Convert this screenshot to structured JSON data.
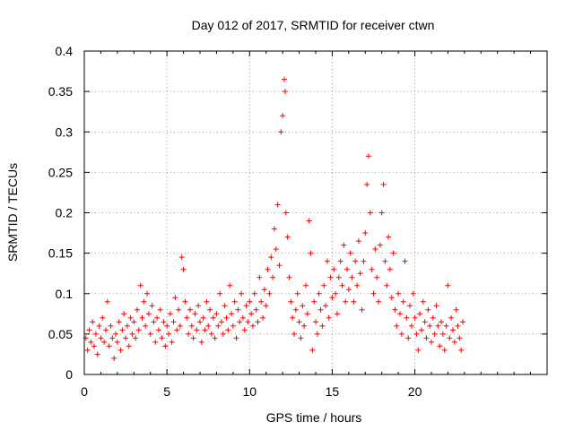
{
  "chart_data": {
    "type": "scatter",
    "title": "Day 012 of 2017, SRMTID for receiver ctwn",
    "xlabel": "GPS time / hours",
    "ylabel": "SRMTID / TECUs",
    "xlim": [
      0,
      28
    ],
    "ylim": [
      0,
      0.4
    ],
    "x_ticks": [
      0,
      5,
      10,
      15,
      20
    ],
    "x_tick_labels": [
      "0",
      "5",
      "10",
      "15",
      "20"
    ],
    "y_ticks": [
      0,
      0.05,
      0.1,
      0.15,
      0.2,
      0.25,
      0.3,
      0.35,
      0.4
    ],
    "y_tick_labels": [
      "0",
      "0.05",
      "0.1",
      "0.15",
      "0.2",
      "0.25",
      "0.3",
      "0.35",
      "0.4"
    ],
    "grid": true,
    "marker": "+",
    "series": [
      {
        "name": "SRMTID",
        "color": "#ff0000",
        "points": [
          [
            0.1,
            0.045
          ],
          [
            0.2,
            0.03
          ],
          [
            0.3,
            0.055
          ],
          [
            0.4,
            0.04
          ],
          [
            0.5,
            0.065
          ],
          [
            0.6,
            0.035
          ],
          [
            0.7,
            0.05
          ],
          [
            0.8,
            0.025
          ],
          [
            0.9,
            0.06
          ],
          [
            1.0,
            0.045
          ],
          [
            1.1,
            0.07
          ],
          [
            1.2,
            0.04
          ],
          [
            1.3,
            0.055
          ],
          [
            1.4,
            0.09
          ],
          [
            1.5,
            0.035
          ],
          [
            1.6,
            0.06
          ],
          [
            1.7,
            0.045
          ],
          [
            1.8,
            0.02
          ],
          [
            1.9,
            0.05
          ],
          [
            2.0,
            0.04
          ],
          [
            2.1,
            0.065
          ],
          [
            2.2,
            0.03
          ],
          [
            2.3,
            0.055
          ],
          [
            2.4,
            0.075
          ],
          [
            2.5,
            0.045
          ],
          [
            2.6,
            0.06
          ],
          [
            2.7,
            0.035
          ],
          [
            2.8,
            0.07
          ],
          [
            2.9,
            0.05
          ],
          [
            3.0,
            0.065
          ],
          [
            3.1,
            0.045
          ],
          [
            3.2,
            0.08
          ],
          [
            3.3,
            0.055
          ],
          [
            3.4,
            0.11
          ],
          [
            3.5,
            0.07
          ],
          [
            3.6,
            0.09
          ],
          [
            3.7,
            0.06
          ],
          [
            3.8,
            0.1
          ],
          [
            3.9,
            0.075
          ],
          [
            4.0,
            0.05
          ],
          [
            4.1,
            0.085
          ],
          [
            4.2,
            0.065
          ],
          [
            4.3,
            0.04
          ],
          [
            4.4,
            0.07
          ],
          [
            4.5,
            0.055
          ],
          [
            4.6,
            0.08
          ],
          [
            4.7,
            0.045
          ],
          [
            4.8,
            0.065
          ],
          [
            4.9,
            0.035
          ],
          [
            5.0,
            0.06
          ],
          [
            5.1,
            0.05
          ],
          [
            5.2,
            0.075
          ],
          [
            5.3,
            0.04
          ],
          [
            5.4,
            0.065
          ],
          [
            5.5,
            0.095
          ],
          [
            5.6,
            0.055
          ],
          [
            5.7,
            0.08
          ],
          [
            5.8,
            0.06
          ],
          [
            5.9,
            0.145
          ],
          [
            6.0,
            0.13
          ],
          [
            6.1,
            0.09
          ],
          [
            6.2,
            0.07
          ],
          [
            6.3,
            0.05
          ],
          [
            6.4,
            0.08
          ],
          [
            6.5,
            0.06
          ],
          [
            6.6,
            0.045
          ],
          [
            6.7,
            0.075
          ],
          [
            6.8,
            0.055
          ],
          [
            6.9,
            0.085
          ],
          [
            7.0,
            0.065
          ],
          [
            7.1,
            0.04
          ],
          [
            7.2,
            0.07
          ],
          [
            7.3,
            0.055
          ],
          [
            7.4,
            0.09
          ],
          [
            7.5,
            0.06
          ],
          [
            7.6,
            0.08
          ],
          [
            7.7,
            0.05
          ],
          [
            7.8,
            0.07
          ],
          [
            7.9,
            0.045
          ],
          [
            8.0,
            0.075
          ],
          [
            8.1,
            0.06
          ],
          [
            8.2,
            0.1
          ],
          [
            8.3,
            0.065
          ],
          [
            8.4,
            0.05
          ],
          [
            8.5,
            0.085
          ],
          [
            8.6,
            0.07
          ],
          [
            8.7,
            0.055
          ],
          [
            8.8,
            0.11
          ],
          [
            8.9,
            0.075
          ],
          [
            9.0,
            0.06
          ],
          [
            9.1,
            0.09
          ],
          [
            9.2,
            0.045
          ],
          [
            9.3,
            0.08
          ],
          [
            9.4,
            0.065
          ],
          [
            9.5,
            0.1
          ],
          [
            9.6,
            0.07
          ],
          [
            9.7,
            0.055
          ],
          [
            9.8,
            0.085
          ],
          [
            9.9,
            0.065
          ],
          [
            10.0,
            0.09
          ],
          [
            10.1,
            0.075
          ],
          [
            10.2,
            0.06
          ],
          [
            10.3,
            0.1
          ],
          [
            10.4,
            0.08
          ],
          [
            10.5,
            0.065
          ],
          [
            10.6,
            0.12
          ],
          [
            10.7,
            0.09
          ],
          [
            10.8,
            0.07
          ],
          [
            10.9,
            0.105
          ],
          [
            11.0,
            0.085
          ],
          [
            11.1,
            0.13
          ],
          [
            11.2,
            0.1
          ],
          [
            11.3,
            0.145
          ],
          [
            11.4,
            0.12
          ],
          [
            11.5,
            0.18
          ],
          [
            11.6,
            0.155
          ],
          [
            11.7,
            0.21
          ],
          [
            11.8,
            0.135
          ],
          [
            11.9,
            0.3
          ],
          [
            12.0,
            0.32
          ],
          [
            12.1,
            0.365
          ],
          [
            12.15,
            0.35
          ],
          [
            12.2,
            0.2
          ],
          [
            12.3,
            0.17
          ],
          [
            12.4,
            0.12
          ],
          [
            12.5,
            0.09
          ],
          [
            12.6,
            0.07
          ],
          [
            12.7,
            0.05
          ],
          [
            12.8,
            0.08
          ],
          [
            12.9,
            0.1
          ],
          [
            13.0,
            0.065
          ],
          [
            13.1,
            0.045
          ],
          [
            13.2,
            0.085
          ],
          [
            13.3,
            0.06
          ],
          [
            13.4,
            0.11
          ],
          [
            13.5,
            0.075
          ],
          [
            13.6,
            0.19
          ],
          [
            13.7,
            0.15
          ],
          [
            13.8,
            0.03
          ],
          [
            13.9,
            0.09
          ],
          [
            14.0,
            0.065
          ],
          [
            14.1,
            0.05
          ],
          [
            14.2,
            0.1
          ],
          [
            14.3,
            0.08
          ],
          [
            14.4,
            0.06
          ],
          [
            14.5,
            0.11
          ],
          [
            14.6,
            0.085
          ],
          [
            14.7,
            0.14
          ],
          [
            14.8,
            0.07
          ],
          [
            14.9,
            0.12
          ],
          [
            15.0,
            0.095
          ],
          [
            15.1,
            0.13
          ],
          [
            15.2,
            0.1
          ],
          [
            15.3,
            0.075
          ],
          [
            15.4,
            0.12
          ],
          [
            15.5,
            0.14
          ],
          [
            15.6,
            0.11
          ],
          [
            15.7,
            0.16
          ],
          [
            15.8,
            0.09
          ],
          [
            15.9,
            0.13
          ],
          [
            16.0,
            0.105
          ],
          [
            16.1,
            0.15
          ],
          [
            16.2,
            0.12
          ],
          [
            16.3,
            0.09
          ],
          [
            16.4,
            0.14
          ],
          [
            16.5,
            0.11
          ],
          [
            16.6,
            0.165
          ],
          [
            16.7,
            0.125
          ],
          [
            16.8,
            0.08
          ],
          [
            16.9,
            0.14
          ],
          [
            17.0,
            0.175
          ],
          [
            17.1,
            0.235
          ],
          [
            17.2,
            0.27
          ],
          [
            17.3,
            0.2
          ],
          [
            17.4,
            0.13
          ],
          [
            17.5,
            0.1
          ],
          [
            17.6,
            0.155
          ],
          [
            17.7,
            0.12
          ],
          [
            17.8,
            0.09
          ],
          [
            17.9,
            0.16
          ],
          [
            18.0,
            0.2
          ],
          [
            18.1,
            0.235
          ],
          [
            18.2,
            0.14
          ],
          [
            18.3,
            0.11
          ],
          [
            18.4,
            0.17
          ],
          [
            18.5,
            0.13
          ],
          [
            18.6,
            0.095
          ],
          [
            18.7,
            0.15
          ],
          [
            18.8,
            0.08
          ],
          [
            18.9,
            0.06
          ],
          [
            19.0,
            0.1
          ],
          [
            19.1,
            0.075
          ],
          [
            19.2,
            0.05
          ],
          [
            19.3,
            0.09
          ],
          [
            19.4,
            0.14
          ],
          [
            19.5,
            0.07
          ],
          [
            19.6,
            0.045
          ],
          [
            19.7,
            0.085
          ],
          [
            19.8,
            0.06
          ],
          [
            19.9,
            0.1
          ],
          [
            20.0,
            0.07
          ],
          [
            20.1,
            0.05
          ],
          [
            20.2,
            0.03
          ],
          [
            20.3,
            0.075
          ],
          [
            20.4,
            0.055
          ],
          [
            20.5,
            0.09
          ],
          [
            20.6,
            0.065
          ],
          [
            20.7,
            0.045
          ],
          [
            20.8,
            0.08
          ],
          [
            20.9,
            0.06
          ],
          [
            21.0,
            0.04
          ],
          [
            21.1,
            0.07
          ],
          [
            21.2,
            0.05
          ],
          [
            21.3,
            0.085
          ],
          [
            21.4,
            0.06
          ],
          [
            21.5,
            0.035
          ],
          [
            21.6,
            0.065
          ],
          [
            21.7,
            0.05
          ],
          [
            21.8,
            0.03
          ],
          [
            21.9,
            0.06
          ],
          [
            22.0,
            0.11
          ],
          [
            22.1,
            0.045
          ],
          [
            22.2,
            0.07
          ],
          [
            22.3,
            0.055
          ],
          [
            22.4,
            0.04
          ],
          [
            22.5,
            0.08
          ],
          [
            22.6,
            0.06
          ],
          [
            22.7,
            0.045
          ],
          [
            22.8,
            0.03
          ],
          [
            22.9,
            0.065
          ]
        ]
      }
    ]
  }
}
